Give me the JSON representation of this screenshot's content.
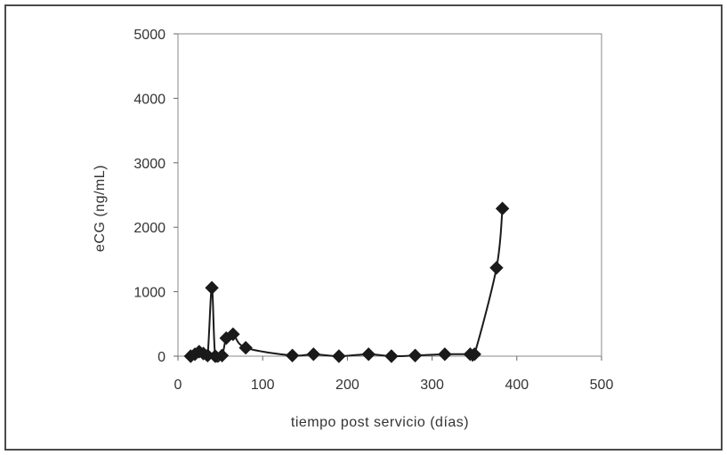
{
  "chart_data": {
    "type": "scatter",
    "title": "",
    "xlabel": "tiempo post servicio (días)",
    "ylabel": "eCG (ng/mL)",
    "xlim": [
      0,
      500
    ],
    "ylim": [
      0,
      5000
    ],
    "xticks": [
      0,
      100,
      200,
      300,
      400,
      500
    ],
    "yticks": [
      0,
      1000,
      2000,
      3000,
      4000,
      5000
    ],
    "grid": false,
    "legend": "none",
    "line_style": "smooth",
    "marker": "diamond",
    "series": [
      {
        "color": "#1a1a1a",
        "points": [
          [
            15,
            0
          ],
          [
            20,
            30
          ],
          [
            25,
            70
          ],
          [
            30,
            40
          ],
          [
            35,
            10
          ],
          [
            40,
            1060
          ],
          [
            44,
            0
          ],
          [
            52,
            10
          ],
          [
            57,
            280
          ],
          [
            65,
            340
          ],
          [
            80,
            130
          ],
          [
            135,
            10
          ],
          [
            160,
            30
          ],
          [
            190,
            0
          ],
          [
            225,
            30
          ],
          [
            252,
            0
          ],
          [
            280,
            10
          ],
          [
            315,
            30
          ],
          [
            345,
            30
          ],
          [
            350,
            30
          ],
          [
            376,
            1370
          ],
          [
            383,
            2290
          ]
        ]
      }
    ]
  }
}
